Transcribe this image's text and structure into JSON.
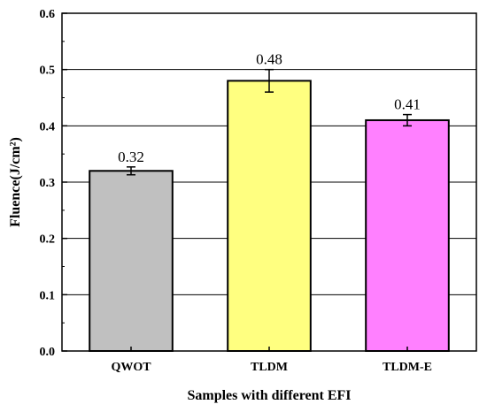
{
  "chart_data": {
    "type": "bar",
    "xlabel": "Samples with different EFI",
    "ylabel": "Fluence(J/cm²)",
    "ylim": [
      0,
      0.6
    ],
    "yticks": [
      0.0,
      0.1,
      0.2,
      0.3,
      0.4,
      0.5,
      0.6
    ],
    "ytick_labels": [
      "0.0",
      "0.1",
      "0.2",
      "0.3",
      "0.4",
      "0.5",
      "0.6"
    ],
    "categories": [
      "QWOT",
      "TLDM",
      "TLDM-E"
    ],
    "values": [
      0.32,
      0.48,
      0.41
    ],
    "errors": [
      0.007,
      0.02,
      0.01
    ],
    "value_labels": [
      "0.32",
      "0.48",
      "0.41"
    ],
    "bar_colors": [
      "#c0c0c0",
      "#ffff80",
      "#ff80ff"
    ],
    "grid": true
  }
}
